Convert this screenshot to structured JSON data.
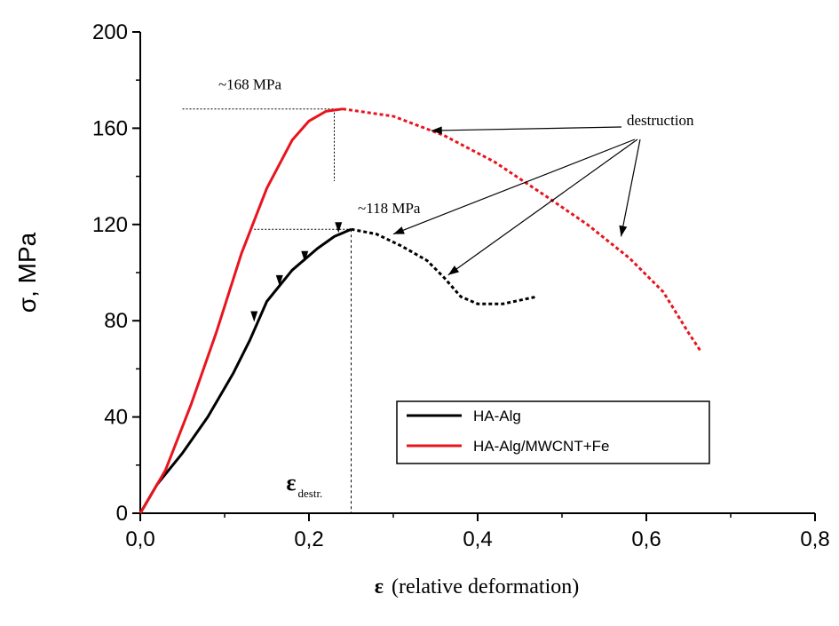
{
  "chart_data": {
    "type": "line",
    "ylabel": "σ, MPa",
    "xlabel_symbol": "ε",
    "xlabel_text": "(relative deformation)",
    "xlim": [
      0,
      0.8
    ],
    "ylim": [
      0,
      200
    ],
    "x_tick_values": [
      0,
      0.2,
      0.4,
      0.6,
      0.8
    ],
    "x_tick_labels": [
      "0,0",
      "0,2",
      "0,4",
      "0,6",
      "0,8"
    ],
    "y_tick_values": [
      0,
      40,
      80,
      120,
      160,
      200
    ],
    "y_tick_labels": [
      "0",
      "40",
      "80",
      "120",
      "160",
      "200"
    ],
    "grid": false,
    "legend_position": "lower-right",
    "series": [
      {
        "name": "HA-Alg",
        "color": "#000000",
        "solid": [
          [
            0,
            0
          ],
          [
            0.02,
            12
          ],
          [
            0.05,
            25
          ],
          [
            0.08,
            40
          ],
          [
            0.11,
            58
          ],
          [
            0.13,
            72
          ],
          [
            0.15,
            88
          ],
          [
            0.18,
            101
          ],
          [
            0.21,
            110
          ],
          [
            0.23,
            115
          ],
          [
            0.25,
            118
          ]
        ],
        "dashed": [
          [
            0.25,
            118
          ],
          [
            0.28,
            116
          ],
          [
            0.31,
            111
          ],
          [
            0.34,
            105
          ],
          [
            0.36,
            98
          ],
          [
            0.38,
            90
          ],
          [
            0.4,
            87
          ],
          [
            0.43,
            87
          ],
          [
            0.47,
            90
          ]
        ]
      },
      {
        "name": "HA-Alg/MWCNT+Fe",
        "color": "#e8141e",
        "solid": [
          [
            0,
            0
          ],
          [
            0.03,
            18
          ],
          [
            0.06,
            45
          ],
          [
            0.09,
            75
          ],
          [
            0.12,
            108
          ],
          [
            0.15,
            135
          ],
          [
            0.18,
            155
          ],
          [
            0.2,
            163
          ],
          [
            0.22,
            167
          ],
          [
            0.24,
            168
          ]
        ],
        "dashed": [
          [
            0.24,
            168
          ],
          [
            0.3,
            165
          ],
          [
            0.36,
            157
          ],
          [
            0.42,
            146
          ],
          [
            0.48,
            132
          ],
          [
            0.53,
            120
          ],
          [
            0.58,
            106
          ],
          [
            0.62,
            92
          ],
          [
            0.65,
            75
          ],
          [
            0.665,
            67
          ]
        ]
      }
    ],
    "annotations": {
      "peak_red": {
        "label": "~168 MPa",
        "x": 0.24,
        "y": 168
      },
      "peak_black": {
        "label": "~118 MPa",
        "x": 0.25,
        "y": 118
      },
      "strain_marker": {
        "symbol": "ε",
        "subscript": "destr.",
        "x": 0.25
      },
      "destruction_label": "destruction",
      "destruction_targets": [
        {
          "series": "HA-Alg/MWCNT+Fe",
          "x": 0.345,
          "y": 159
        },
        {
          "series": "HA-Alg",
          "x": 0.3,
          "y": 116
        },
        {
          "series": "HA-Alg",
          "x": 0.365,
          "y": 99
        },
        {
          "series": "HA-Alg/MWCNT+Fe",
          "x": 0.57,
          "y": 115
        }
      ],
      "fracture_marks": [
        {
          "x": 0.135,
          "y": 81
        },
        {
          "x": 0.165,
          "y": 96
        },
        {
          "x": 0.195,
          "y": 106
        },
        {
          "x": 0.235,
          "y": 118
        }
      ]
    }
  }
}
